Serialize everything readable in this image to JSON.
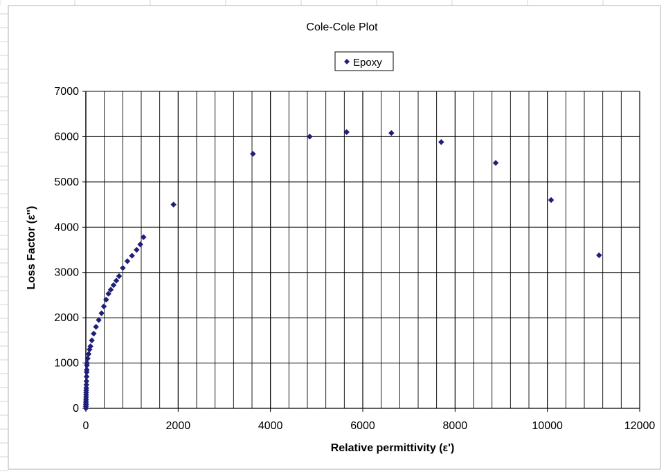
{
  "chart_data": {
    "type": "scatter",
    "title": "Cole-Cole Plot",
    "xlabel": "Relative permittivity  (ε')",
    "ylabel": "Loss Factor (ε'')",
    "xlim": [
      0,
      12000
    ],
    "ylim": [
      0,
      7000
    ],
    "x_ticks": [
      "0",
      "2000",
      "4000",
      "6000",
      "8000",
      "10000",
      "12000"
    ],
    "y_ticks": [
      "0",
      "1000",
      "2000",
      "3000",
      "4000",
      "5000",
      "6000",
      "7000"
    ],
    "grid": true,
    "legend_position": "top-center",
    "series": [
      {
        "name": "Epoxy",
        "color": "#1f1f7a",
        "marker": "diamond",
        "points": [
          [
            1,
            0
          ],
          [
            1,
            40
          ],
          [
            2,
            80
          ],
          [
            2,
            120
          ],
          [
            3,
            160
          ],
          [
            4,
            200
          ],
          [
            5,
            250
          ],
          [
            6,
            300
          ],
          [
            7,
            350
          ],
          [
            8,
            400
          ],
          [
            10,
            450
          ],
          [
            12,
            520
          ],
          [
            14,
            600
          ],
          [
            16,
            700
          ],
          [
            18,
            800
          ],
          [
            20,
            850
          ],
          [
            22,
            950
          ],
          [
            25,
            1000
          ],
          [
            40,
            1100
          ],
          [
            60,
            1200
          ],
          [
            80,
            1300
          ],
          [
            100,
            1370
          ],
          [
            130,
            1500
          ],
          [
            170,
            1650
          ],
          [
            220,
            1800
          ],
          [
            280,
            1950
          ],
          [
            340,
            2100
          ],
          [
            390,
            2250
          ],
          [
            440,
            2400
          ],
          [
            490,
            2530
          ],
          [
            540,
            2620
          ],
          [
            600,
            2720
          ],
          [
            660,
            2820
          ],
          [
            720,
            2920
          ],
          [
            800,
            3100
          ],
          [
            900,
            3250
          ],
          [
            1000,
            3370
          ],
          [
            1100,
            3500
          ],
          [
            1180,
            3620
          ],
          [
            1250,
            3780
          ],
          [
            1900,
            4500
          ],
          [
            3620,
            5620
          ],
          [
            4850,
            6000
          ],
          [
            5650,
            6100
          ],
          [
            6620,
            6080
          ],
          [
            7700,
            5880
          ],
          [
            8880,
            5420
          ],
          [
            10080,
            4600
          ],
          [
            11120,
            3380
          ]
        ]
      }
    ]
  }
}
